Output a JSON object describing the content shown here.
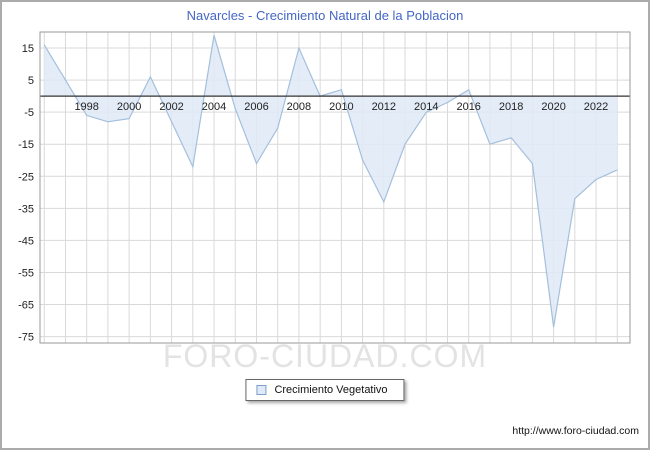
{
  "title": "Navarcles - Crecimiento Natural de la Poblacion",
  "watermark": "FORO-CIUDAD.COM",
  "legend": {
    "label": "Crecimiento Vegetativo"
  },
  "footer_url": "http://www.foro-ciudad.com",
  "colors": {
    "title": "#4466c4",
    "line": "#a4bfdc",
    "fill": "#dfeaf6",
    "grid": "#d9d9d9",
    "zero_line": "#333333",
    "plot_border": "#999999",
    "axis_text": "#222222",
    "watermark": "#e3e3e3",
    "swatch_fill": "#dfeaf6",
    "swatch_border": "#7f9fcc"
  },
  "chart_data": {
    "type": "area",
    "title": "Navarcles - Crecimiento Natural de la Poblacion",
    "legend": "Crecimiento Vegetativo",
    "legend_position": "bottom-center",
    "grid": true,
    "x": [
      1996,
      1997,
      1998,
      1999,
      2000,
      2001,
      2002,
      2003,
      2004,
      2005,
      2006,
      2007,
      2008,
      2009,
      2010,
      2011,
      2012,
      2013,
      2014,
      2015,
      2016,
      2017,
      2018,
      2019,
      2020,
      2021,
      2022,
      2023
    ],
    "values": [
      16,
      5,
      -6,
      -8,
      -7,
      6,
      -8,
      -22,
      19,
      -4,
      -21,
      -10,
      15,
      0,
      2,
      -20,
      -33,
      -15,
      -5,
      -2,
      2,
      -15,
      -13,
      -21,
      -72,
      -32,
      -26,
      -23
    ],
    "x_ticks": [
      1998,
      2000,
      2002,
      2004,
      2006,
      2008,
      2010,
      2012,
      2014,
      2016,
      2018,
      2020,
      2022
    ],
    "y_ticks": [
      15,
      5,
      -5,
      -15,
      -25,
      -35,
      -45,
      -55,
      -65,
      -75
    ],
    "xlim": [
      1995.8,
      2023.6
    ],
    "ylim": [
      -77,
      20
    ],
    "baseline": 0,
    "xlabel": "",
    "ylabel": ""
  }
}
